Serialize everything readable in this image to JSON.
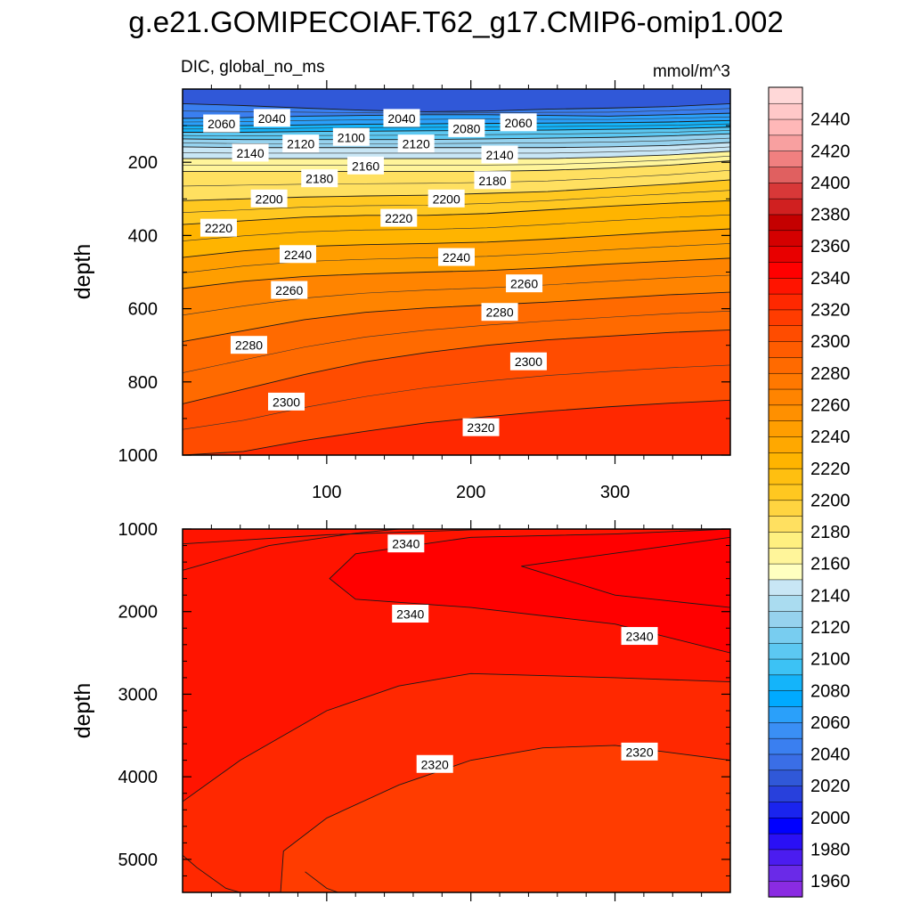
{
  "chart_data": {
    "type": "contour",
    "title": "g.e21.GOMIPECOIAF.T62_g17.CMIP6-omip1.002",
    "variable_label": "DIC, global_no_ms",
    "units_label": "mmol/m^3",
    "ylabel": "depth",
    "x_axis": {
      "range": [
        0,
        380
      ],
      "ticks": [
        100,
        200,
        300
      ]
    },
    "upper_panel": {
      "ylim": [
        0,
        1000
      ],
      "y_ticks": [
        200,
        400,
        600,
        800,
        1000
      ]
    },
    "lower_panel": {
      "ylim": [
        1000,
        5400
      ],
      "y_ticks": [
        1000,
        2000,
        3000,
        4000,
        5000
      ]
    },
    "colorbar": {
      "range": [
        1950,
        2460
      ],
      "step": 10,
      "tick_labels": [
        "1960",
        "1980",
        "2000",
        "2020",
        "2040",
        "2060",
        "2080",
        "2100",
        "2120",
        "2140",
        "2160",
        "2180",
        "2200",
        "2220",
        "2240",
        "2260",
        "2280",
        "2300",
        "2320",
        "2340",
        "2360",
        "2380",
        "2400",
        "2420",
        "2440"
      ],
      "colors": [
        "#8a2be2",
        "#6a2ae8",
        "#4b1cf0",
        "#2a10f5",
        "#0000ff",
        "#1a24ee",
        "#2840dc",
        "#3058d8",
        "#3a6ee6",
        "#3a7ff0",
        "#3a8ff5",
        "#2aa0fa",
        "#00aaff",
        "#14b4fa",
        "#3cc2f5",
        "#5cc8f2",
        "#78cdf0",
        "#96d2ee",
        "#aadcf0",
        "#c8e6f5",
        "#ffffc0",
        "#fff59a",
        "#fff080",
        "#ffe060",
        "#ffd440",
        "#ffc820",
        "#ffbf10",
        "#ffb400",
        "#ffa800",
        "#ff9e00",
        "#ff9000",
        "#ff8400",
        "#ff7800",
        "#ff6a00",
        "#ff5c00",
        "#ff4c00",
        "#ff3c00",
        "#ff2800",
        "#ff1400",
        "#ff0000",
        "#e80000",
        "#d40000",
        "#c40000",
        "#d02020",
        "#d83838",
        "#e06060",
        "#f08080",
        "#f8a0a0",
        "#ffb8b8",
        "#ffc8c8",
        "#ffd8d8"
      ]
    },
    "upper_contours": [
      {
        "value": 2040,
        "y": [
          40,
          45,
          52,
          58,
          62,
          60,
          55,
          52,
          48,
          40
        ]
      },
      {
        "value": 2060,
        "y": [
          80,
          78,
          74,
          72,
          70,
          70,
          72,
          74,
          70,
          66
        ]
      },
      {
        "value": 2080,
        "y": [
          100,
          100,
          98,
          96,
          95,
          94,
          93,
          92,
          90,
          86
        ]
      },
      {
        "value": 2100,
        "y": [
          118,
          118,
          116,
          115,
          114,
          113,
          112,
          110,
          108,
          104
        ]
      },
      {
        "value": 2120,
        "y": [
          136,
          138,
          138,
          138,
          138,
          136,
          134,
          132,
          128,
          122
        ]
      },
      {
        "value": 2140,
        "y": [
          158,
          160,
          160,
          160,
          160,
          160,
          160,
          158,
          154,
          146
        ]
      },
      {
        "value": 2160,
        "y": [
          190,
          190,
          190,
          190,
          190,
          190,
          190,
          186,
          180,
          170
        ]
      },
      {
        "value": 2180,
        "y": [
          225,
          225,
          225,
          225,
          225,
          225,
          222,
          216,
          208,
          196
        ]
      },
      {
        "value": 2200,
        "y": [
          305,
          300,
          295,
          292,
          290,
          285,
          280,
          270,
          260,
          248
        ]
      },
      {
        "value": 2220,
        "y": [
          370,
          360,
          350,
          345,
          345,
          340,
          330,
          320,
          312,
          305
        ]
      },
      {
        "value": 2240,
        "y": [
          460,
          442,
          430,
          425,
          422,
          418,
          410,
          400,
          390,
          382
        ]
      },
      {
        "value": 2260,
        "y": [
          545,
          525,
          512,
          505,
          500,
          496,
          488,
          478,
          470,
          462
        ]
      },
      {
        "value": 2280,
        "y": [
          690,
          660,
          630,
          610,
          598,
          590,
          582,
          572,
          562,
          555
        ]
      },
      {
        "value": 2300,
        "y": [
          860,
          820,
          780,
          745,
          720,
          700,
          685,
          675,
          665,
          658
        ]
      },
      {
        "value": 2320,
        "y": [
          1000,
          990,
          960,
          935,
          912,
          895,
          880,
          868,
          858,
          850
        ]
      }
    ],
    "upper_labels": [
      {
        "text": "2060",
        "x": 27,
        "y": 95
      },
      {
        "text": "2040",
        "x": 62,
        "y": 80
      },
      {
        "text": "2040",
        "x": 152,
        "y": 80
      },
      {
        "text": "2080",
        "x": 197,
        "y": 108
      },
      {
        "text": "2060",
        "x": 233,
        "y": 92
      },
      {
        "text": "2100",
        "x": 117,
        "y": 132
      },
      {
        "text": "2120",
        "x": 82,
        "y": 150
      },
      {
        "text": "2120",
        "x": 162,
        "y": 150
      },
      {
        "text": "2140",
        "x": 47,
        "y": 175
      },
      {
        "text": "2140",
        "x": 220,
        "y": 180
      },
      {
        "text": "2160",
        "x": 127,
        "y": 210
      },
      {
        "text": "2180",
        "x": 95,
        "y": 245
      },
      {
        "text": "2180",
        "x": 215,
        "y": 250
      },
      {
        "text": "2200",
        "x": 60,
        "y": 300
      },
      {
        "text": "2200",
        "x": 183,
        "y": 300
      },
      {
        "text": "2220",
        "x": 25,
        "y": 380
      },
      {
        "text": "2220",
        "x": 150,
        "y": 353
      },
      {
        "text": "2240",
        "x": 80,
        "y": 452
      },
      {
        "text": "2240",
        "x": 190,
        "y": 460
      },
      {
        "text": "2260",
        "x": 74,
        "y": 550
      },
      {
        "text": "2260",
        "x": 237,
        "y": 532
      },
      {
        "text": "2280",
        "x": 46,
        "y": 700
      },
      {
        "text": "2280",
        "x": 220,
        "y": 610
      },
      {
        "text": "2300",
        "x": 72,
        "y": 855
      },
      {
        "text": "2300",
        "x": 240,
        "y": 745
      },
      {
        "text": "2320",
        "x": 207,
        "y": 925
      }
    ],
    "lower_regions": [
      {
        "value": 2345,
        "points": [
          [
            235,
            1450
          ],
          [
            380,
            1100
          ],
          [
            380,
            1950
          ],
          [
            300,
            1800
          ]
        ]
      },
      {
        "value": 2340,
        "points": [
          [
            102,
            1600
          ],
          [
            120,
            1300
          ],
          [
            200,
            1100
          ],
          [
            300,
            1060
          ],
          [
            380,
            1000
          ],
          [
            380,
            2500
          ],
          [
            300,
            2150
          ],
          [
            200,
            1950
          ],
          [
            120,
            1850
          ]
        ]
      },
      {
        "value": 2325,
        "points": [
          [
            0,
            4300
          ],
          [
            40,
            3800
          ],
          [
            100,
            3200
          ],
          [
            150,
            2900
          ],
          [
            200,
            2750
          ],
          [
            300,
            2800
          ],
          [
            380,
            2850
          ],
          [
            380,
            5400
          ],
          [
            0,
            5400
          ]
        ]
      },
      {
        "value": 2315,
        "points": [
          [
            68,
            5400
          ],
          [
            70,
            4900
          ],
          [
            100,
            4500
          ],
          [
            150,
            4100
          ],
          [
            200,
            3800
          ],
          [
            250,
            3650
          ],
          [
            300,
            3620
          ],
          [
            380,
            3800
          ],
          [
            380,
            5400
          ]
        ]
      }
    ],
    "lower_contours": [
      {
        "points": [
          [
            0,
            1180
          ],
          [
            100,
            1070
          ],
          [
            200,
            1010
          ],
          [
            250,
            1000
          ]
        ]
      },
      {
        "points": [
          [
            0,
            1500
          ],
          [
            60,
            1200
          ],
          [
            120,
            1050
          ],
          [
            150,
            1000
          ]
        ]
      },
      {
        "points": [
          [
            0,
            4950
          ],
          [
            10,
            5100
          ],
          [
            30,
            5350
          ],
          [
            40,
            5400
          ]
        ]
      },
      {
        "points": [
          [
            85,
            5150
          ],
          [
            100,
            5350
          ],
          [
            108,
            5400
          ]
        ]
      }
    ],
    "lower_labels": [
      {
        "text": "2340",
        "x": 155,
        "y": 1180
      },
      {
        "text": "2340",
        "x": 158,
        "y": 2030
      },
      {
        "text": "2340",
        "x": 317,
        "y": 2300
      },
      {
        "text": "2320",
        "x": 175,
        "y": 3850
      },
      {
        "text": "2320",
        "x": 317,
        "y": 3700
      }
    ]
  }
}
